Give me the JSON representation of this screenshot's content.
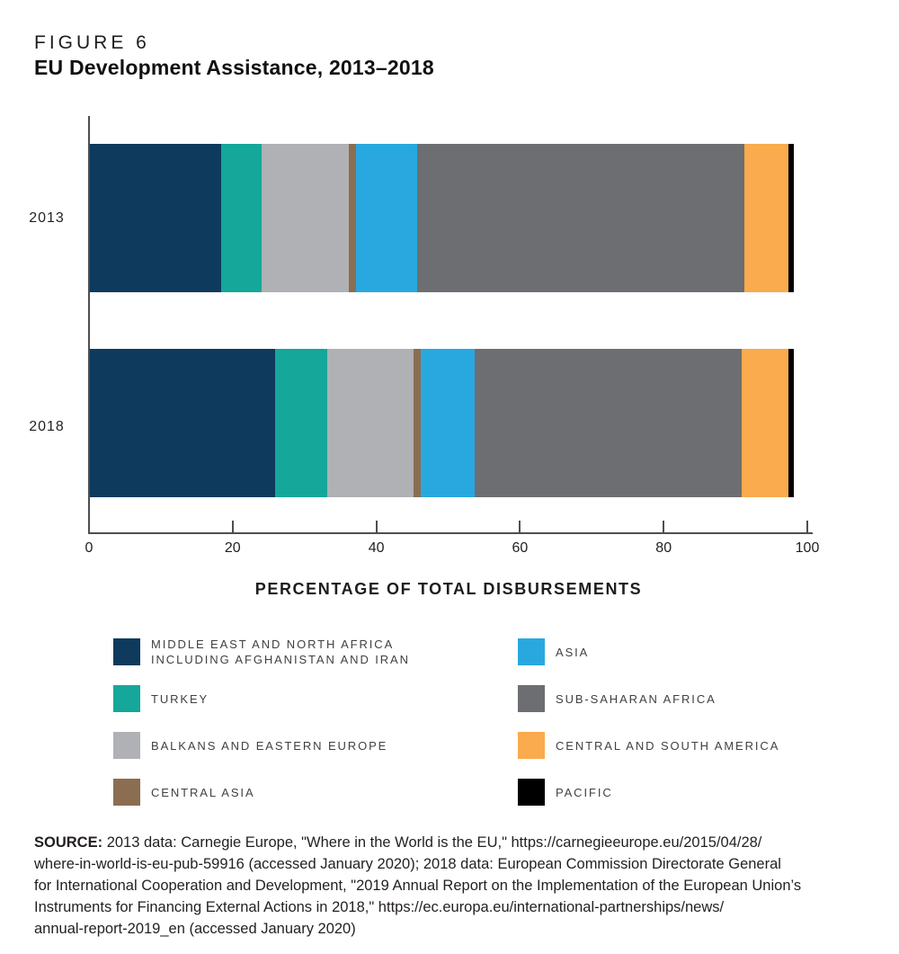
{
  "chart_data": {
    "type": "bar",
    "orientation": "horizontal",
    "stacked": true,
    "figure_label": "FIGURE 6",
    "title": "EU Development Assistance, 2013–2018",
    "categories": [
      "2013",
      "2018"
    ],
    "xlabel": "PERCENTAGE OF TOTAL DISBURSEMENTS",
    "xlim": [
      0,
      100
    ],
    "xticks": [
      0,
      20,
      40,
      60,
      80,
      100
    ],
    "axis_color": "#4D4E50",
    "grid": false,
    "legend_position": "bottom-two-columns",
    "units": "percent",
    "series": [
      {
        "name": "MIDDLE EAST AND NORTH AFRICA INCLUDING AFGHANISTAN AND IRAN",
        "color": "#0E3A5D",
        "values": [
          18.3,
          25.8
        ]
      },
      {
        "name": "TURKEY",
        "color": "#15A79A",
        "values": [
          5.6,
          7.3
        ]
      },
      {
        "name": "BALKANS AND EASTERN EUROPE",
        "color": "#AFB1B4",
        "values": [
          12.2,
          11.9
        ]
      },
      {
        "name": "CENTRAL ASIA",
        "color": "#8B6E51",
        "values": [
          0.9,
          1.0
        ]
      },
      {
        "name": "ASIA",
        "color": "#29A8E0",
        "values": [
          8.6,
          7.6
        ]
      },
      {
        "name": "SUB-SAHARAN AFRICA",
        "color": "#6D6E71",
        "values": [
          45.5,
          37.2
        ]
      },
      {
        "name": "CENTRAL AND SOUTH AMERICA",
        "color": "#F9AB4D",
        "values": [
          6.1,
          6.4
        ]
      },
      {
        "name": "PACIFIC",
        "color": "#000000",
        "values": [
          0.8,
          0.8
        ]
      }
    ]
  },
  "legend": {
    "columns": [
      {
        "items": [
          {
            "series": 0,
            "lines": [
              "MIDDLE EAST AND NORTH AFRICA",
              "INCLUDING AFGHANISTAN AND IRAN"
            ]
          },
          {
            "series": 1,
            "lines": [
              "TURKEY"
            ]
          },
          {
            "series": 2,
            "lines": [
              "BALKANS AND EASTERN EUROPE"
            ]
          },
          {
            "series": 3,
            "lines": [
              "CENTRAL ASIA"
            ]
          }
        ]
      },
      {
        "items": [
          {
            "series": 4,
            "lines": [
              "ASIA"
            ]
          },
          {
            "series": 5,
            "lines": [
              "SUB-SAHARAN AFRICA"
            ]
          },
          {
            "series": 6,
            "lines": [
              "CENTRAL AND SOUTH AMERICA"
            ]
          },
          {
            "series": 7,
            "lines": [
              "PACIFIC"
            ]
          }
        ]
      }
    ]
  },
  "source": {
    "label": "SOURCE:",
    "lines": [
      "2013 data: Carnegie Europe, \"Where in the World is the EU,\" https://carnegieeurope.eu/2015/04/28/",
      "where-in-world-is-eu-pub-59916 (accessed January 2020); 2018 data: European Commission Directorate General",
      "for International Cooperation and Development, \"2019 Annual Report on the Implementation of the European Union’s",
      "Instruments for Financing External Actions in 2018,\" https://ec.europa.eu/international-partnerships/news/",
      "annual-report-2019_en (accessed January 2020)"
    ]
  }
}
